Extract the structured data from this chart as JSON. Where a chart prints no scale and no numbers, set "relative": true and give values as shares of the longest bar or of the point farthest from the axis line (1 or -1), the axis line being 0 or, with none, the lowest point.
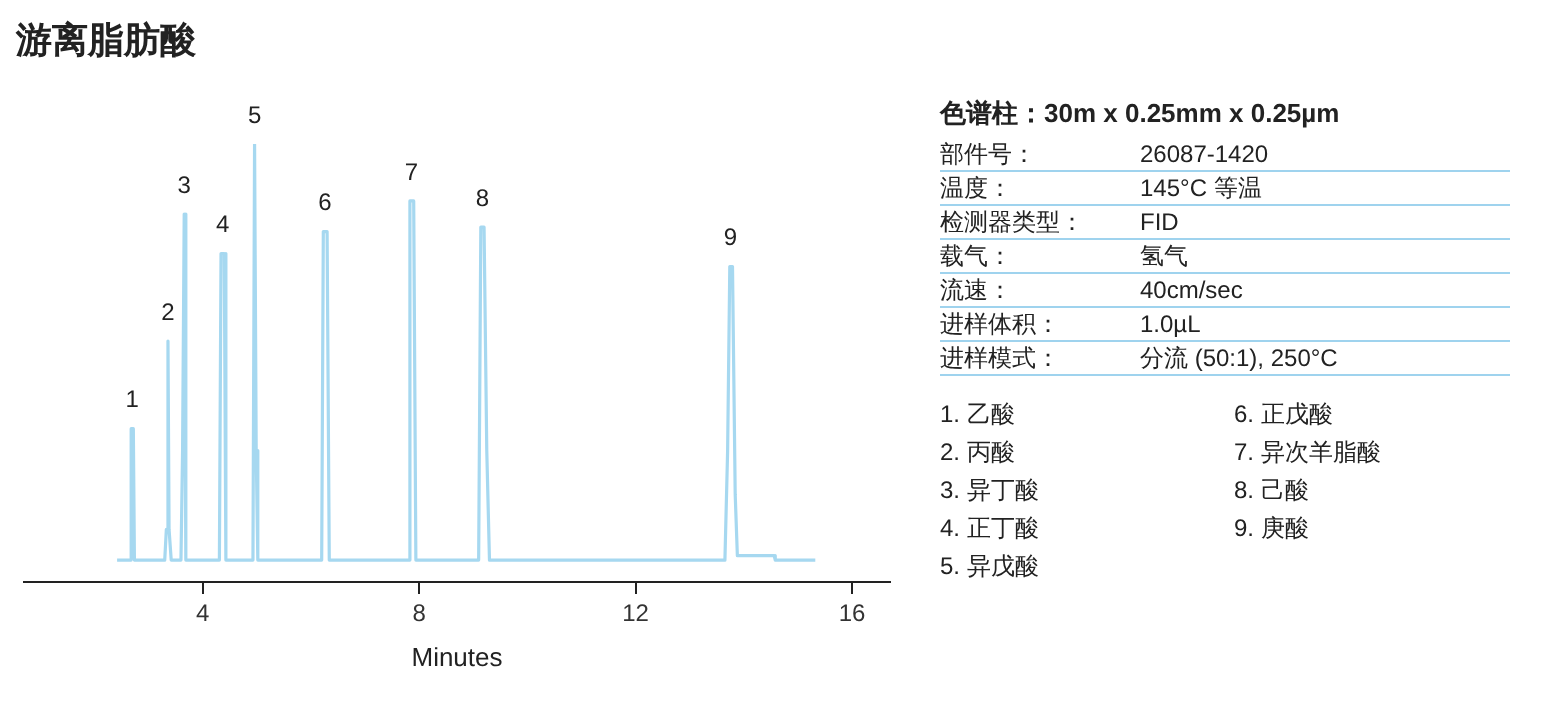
{
  "chart_data": {
    "type": "line",
    "title": "游离脂肪酸",
    "xlabel": "Minutes",
    "relative": true,
    "xlim": [
      0.7,
      16.7
    ],
    "xticks": [
      4,
      8,
      12,
      16
    ],
    "grid": false,
    "legend": false,
    "marker": "none",
    "line_style": "solid",
    "tick_labels": "x",
    "series": [
      {
        "color": "#a6d8f0",
        "x": [
          2.42,
          2.66,
          2.68,
          2.72,
          2.74,
          3.3,
          3.33,
          3.36,
          3.38,
          3.42,
          3.6,
          3.63,
          3.66,
          3.69,
          4.31,
          4.34,
          4.4,
          4.43,
          4.93,
          4.96,
          4.99,
          5.02,
          6.2,
          6.23,
          6.3,
          6.34,
          7.8,
          7.83,
          7.9,
          7.94,
          9.1,
          9.14,
          9.2,
          9.25,
          9.3,
          13.65,
          13.7,
          13.74,
          13.79,
          13.84,
          13.88,
          14.56,
          14.58,
          15.32
        ],
        "values": [
          0.05,
          0.05,
          0.35,
          0.35,
          0.05,
          0.05,
          0.12,
          0.55,
          0.12,
          0.05,
          0.05,
          0.3,
          0.84,
          0.05,
          0.05,
          0.75,
          0.75,
          0.05,
          0.05,
          1.0,
          0.3,
          0.05,
          0.05,
          0.8,
          0.8,
          0.05,
          0.05,
          0.87,
          0.87,
          0.05,
          0.05,
          0.81,
          0.81,
          0.3,
          0.05,
          0.05,
          0.3,
          0.72,
          0.72,
          0.2,
          0.06,
          0.06,
          0.05,
          0.05
        ]
      }
    ],
    "annotations": [
      {
        "text": "1",
        "x": 2.7,
        "y": 0.35
      },
      {
        "text": "2",
        "x": 3.36,
        "y": 0.55
      },
      {
        "text": "3",
        "x": 3.66,
        "y": 0.84
      },
      {
        "text": "4",
        "x": 4.37,
        "y": 0.75
      },
      {
        "text": "5",
        "x": 4.96,
        "y": 1.0
      },
      {
        "text": "6",
        "x": 6.26,
        "y": 0.8
      },
      {
        "text": "7",
        "x": 7.86,
        "y": 0.87
      },
      {
        "text": "8",
        "x": 9.17,
        "y": 0.81
      },
      {
        "text": "9",
        "x": 13.75,
        "y": 0.72
      },
      "色谱柱：30m x 0.25mm x 0.25µm",
      "部件号：",
      "26087-1420",
      "温度：",
      "145°C 等温",
      "检测器类型：",
      "FID",
      "载气：",
      "氢气",
      "流速：",
      "40cm/sec",
      "进样体积：",
      "1.0µL",
      "进样模式：",
      "分流 (50:1), 250°C",
      "1. 乙酸",
      "2. 丙酸",
      "3. 异丁酸",
      "4. 正丁酸",
      "5. 异戊酸",
      "6. 正戊酸",
      "7. 异次羊脂酸",
      "8. 己酸",
      "9. 庚酸"
    ]
  }
}
